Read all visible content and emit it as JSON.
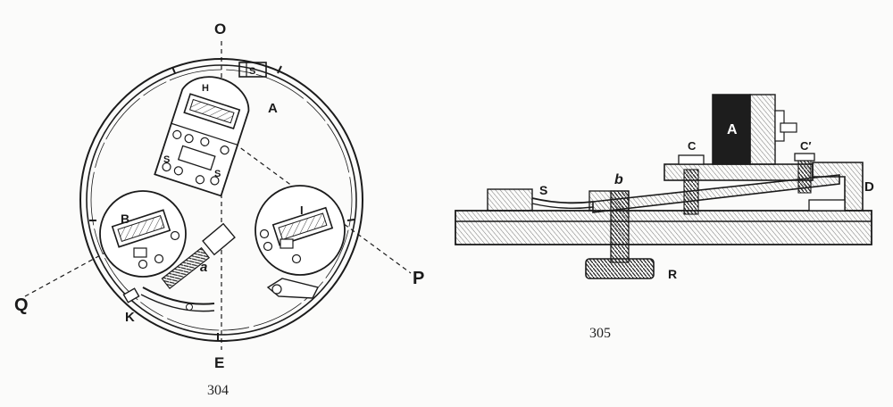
{
  "fig304": {
    "caption": "304",
    "labels": {
      "O": "O",
      "E": "E",
      "P": "P",
      "Q": "Q",
      "A": "A",
      "H": "H",
      "S_top": "S",
      "S_left": "S",
      "S_right": "S",
      "B": "B",
      "I": "I",
      "K": "K",
      "a": "a"
    }
  },
  "fig305": {
    "caption": "305",
    "labels": {
      "A": "A",
      "C": "C",
      "C_prime": "C′",
      "D": "D",
      "S": "S",
      "b": "b",
      "R": "R"
    }
  }
}
